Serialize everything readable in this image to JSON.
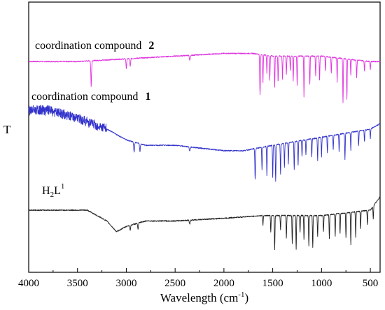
{
  "chart_data": {
    "type": "line",
    "xlabel": "Wavelength (cm",
    "xlabel_sup": "-1",
    "xlabel_tail": ")",
    "ylabel": "T",
    "xlim": [
      4000,
      400
    ],
    "x_ticks": [
      4000,
      3500,
      3000,
      2500,
      2000,
      1500,
      1000,
      500
    ],
    "grid": false,
    "series": [
      {
        "name": "coordination compound 2",
        "label_main": "coordination compound",
        "label_bold": "2",
        "color": "#e033e0",
        "baseline": 0.78,
        "smooth": [
          [
            4000,
            0.0
          ],
          [
            3500,
            0.0
          ],
          [
            3000,
            0.01
          ],
          [
            2500,
            0.02
          ],
          [
            2000,
            0.03
          ],
          [
            1700,
            0.03
          ],
          [
            1500,
            0.02
          ],
          [
            1000,
            0.02
          ],
          [
            500,
            0.0
          ],
          [
            400,
            0.0
          ]
        ],
        "peaks": [
          [
            3360,
            0.32,
            10
          ],
          [
            3000,
            0.12,
            10
          ],
          [
            2960,
            0.1,
            10
          ],
          [
            2350,
            0.06,
            14
          ],
          [
            1630,
            0.5,
            10
          ],
          [
            1600,
            0.35,
            8
          ],
          [
            1560,
            0.22,
            8
          ],
          [
            1530,
            0.3,
            8
          ],
          [
            1480,
            0.38,
            8
          ],
          [
            1445,
            0.32,
            8
          ],
          [
            1400,
            0.28,
            8
          ],
          [
            1360,
            0.22,
            8
          ],
          [
            1320,
            0.18,
            8
          ],
          [
            1290,
            0.3,
            8
          ],
          [
            1250,
            0.36,
            8
          ],
          [
            1180,
            0.5,
            8
          ],
          [
            1120,
            0.35,
            8
          ],
          [
            1060,
            0.25,
            8
          ],
          [
            1020,
            0.3,
            8
          ],
          [
            960,
            0.18,
            8
          ],
          [
            900,
            0.2,
            8
          ],
          [
            840,
            0.3,
            8
          ],
          [
            780,
            0.55,
            8
          ],
          [
            740,
            0.5,
            8
          ],
          [
            700,
            0.2,
            8
          ],
          [
            640,
            0.22,
            8
          ],
          [
            560,
            0.12,
            8
          ],
          [
            500,
            0.1,
            8
          ]
        ]
      },
      {
        "name": "coordination compound 1",
        "label_main": "coordination compound",
        "label_bold": "1",
        "color": "#3333cc",
        "baseline": 0.55,
        "noise": [
          4000,
          3200,
          0.035
        ],
        "smooth": [
          [
            4000,
            0.05
          ],
          [
            3800,
            0.05
          ],
          [
            3500,
            0.02
          ],
          [
            3200,
            -0.02
          ],
          [
            3000,
            -0.06
          ],
          [
            2800,
            -0.08
          ],
          [
            2500,
            -0.08
          ],
          [
            2000,
            -0.1
          ],
          [
            1800,
            -0.1
          ],
          [
            1500,
            -0.08
          ],
          [
            1000,
            -0.05
          ],
          [
            500,
            -0.02
          ],
          [
            400,
            0.0
          ]
        ],
        "peaks": [
          [
            2920,
            0.12,
            12
          ],
          [
            2860,
            0.1,
            10
          ],
          [
            2350,
            0.05,
            14
          ],
          [
            1680,
            0.38,
            10
          ],
          [
            1610,
            0.28,
            8
          ],
          [
            1560,
            0.36,
            8
          ],
          [
            1500,
            0.4,
            8
          ],
          [
            1470,
            0.45,
            8
          ],
          [
            1420,
            0.38,
            8
          ],
          [
            1380,
            0.3,
            8
          ],
          [
            1340,
            0.26,
            8
          ],
          [
            1280,
            0.34,
            8
          ],
          [
            1240,
            0.3,
            8
          ],
          [
            1200,
            0.2,
            8
          ],
          [
            1160,
            0.18,
            8
          ],
          [
            1100,
            0.22,
            8
          ],
          [
            1040,
            0.28,
            8
          ],
          [
            1000,
            0.24,
            8
          ],
          [
            940,
            0.2,
            8
          ],
          [
            880,
            0.18,
            8
          ],
          [
            820,
            0.22,
            8
          ],
          [
            760,
            0.32,
            8
          ],
          [
            700,
            0.22,
            8
          ],
          [
            620,
            0.18,
            8
          ],
          [
            560,
            0.14,
            8
          ],
          [
            500,
            0.12,
            8
          ]
        ]
      },
      {
        "name": "H2L1",
        "label_h": "H",
        "label_sub": "2",
        "label_l": "L",
        "label_sup": "1",
        "color": "#222222",
        "baseline": 0.23,
        "smooth": [
          [
            4000,
            0.0
          ],
          [
            3600,
            0.0
          ],
          [
            3400,
            0.0
          ],
          [
            3200,
            -0.04
          ],
          [
            3100,
            -0.08
          ],
          [
            3000,
            -0.06
          ],
          [
            2800,
            -0.04
          ],
          [
            2500,
            -0.04
          ],
          [
            2000,
            -0.03
          ],
          [
            1600,
            -0.02
          ],
          [
            1500,
            -0.02
          ],
          [
            1000,
            -0.02
          ],
          [
            500,
            -0.0
          ],
          [
            400,
            0.05
          ]
        ],
        "peaks": [
          [
            2960,
            0.06,
            10
          ],
          [
            2880,
            0.08,
            10
          ],
          [
            2350,
            0.05,
            14
          ],
          [
            1600,
            0.12,
            8
          ],
          [
            1520,
            0.2,
            8
          ],
          [
            1480,
            0.42,
            8
          ],
          [
            1420,
            0.18,
            8
          ],
          [
            1360,
            0.28,
            8
          ],
          [
            1300,
            0.35,
            8
          ],
          [
            1260,
            0.42,
            8
          ],
          [
            1220,
            0.2,
            8
          ],
          [
            1180,
            0.3,
            8
          ],
          [
            1130,
            0.38,
            8
          ],
          [
            1090,
            0.4,
            8
          ],
          [
            1040,
            0.26,
            8
          ],
          [
            980,
            0.2,
            8
          ],
          [
            920,
            0.3,
            8
          ],
          [
            860,
            0.28,
            8
          ],
          [
            810,
            0.24,
            8
          ],
          [
            750,
            0.3,
            8
          ],
          [
            700,
            0.4,
            8
          ],
          [
            650,
            0.32,
            8
          ],
          [
            600,
            0.22,
            8
          ],
          [
            530,
            0.18,
            8
          ],
          [
            470,
            0.16,
            8
          ]
        ]
      }
    ]
  }
}
